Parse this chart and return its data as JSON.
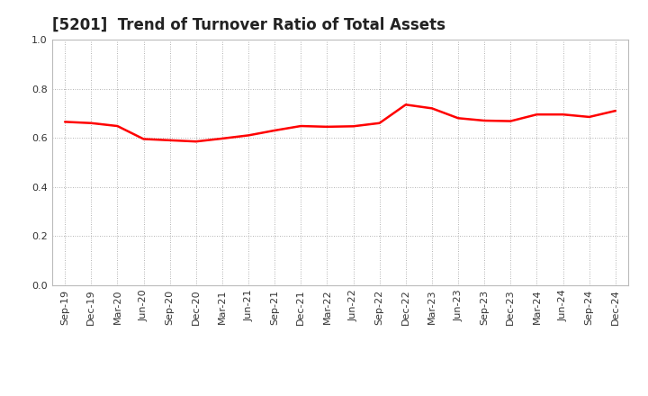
{
  "title": "[5201]  Trend of Turnover Ratio of Total Assets",
  "labels": [
    "Sep-19",
    "Dec-19",
    "Mar-20",
    "Jun-20",
    "Sep-20",
    "Dec-20",
    "Mar-21",
    "Jun-21",
    "Sep-21",
    "Dec-21",
    "Mar-22",
    "Jun-22",
    "Sep-22",
    "Dec-22",
    "Mar-23",
    "Jun-23",
    "Sep-23",
    "Dec-23",
    "Mar-24",
    "Jun-24",
    "Sep-24",
    "Dec-24"
  ],
  "values": [
    0.665,
    0.66,
    0.648,
    0.595,
    0.59,
    0.585,
    0.597,
    0.61,
    0.63,
    0.648,
    0.645,
    0.647,
    0.66,
    0.735,
    0.72,
    0.68,
    0.67,
    0.668,
    0.695,
    0.695,
    0.685,
    0.71
  ],
  "line_color": "#FF0000",
  "line_width": 1.8,
  "ylim": [
    0.0,
    1.0
  ],
  "yticks": [
    0.0,
    0.2,
    0.4,
    0.6,
    0.8,
    1.0
  ],
  "grid_color": "#999999",
  "background_color": "#ffffff",
  "title_fontsize": 12,
  "tick_fontsize": 8
}
